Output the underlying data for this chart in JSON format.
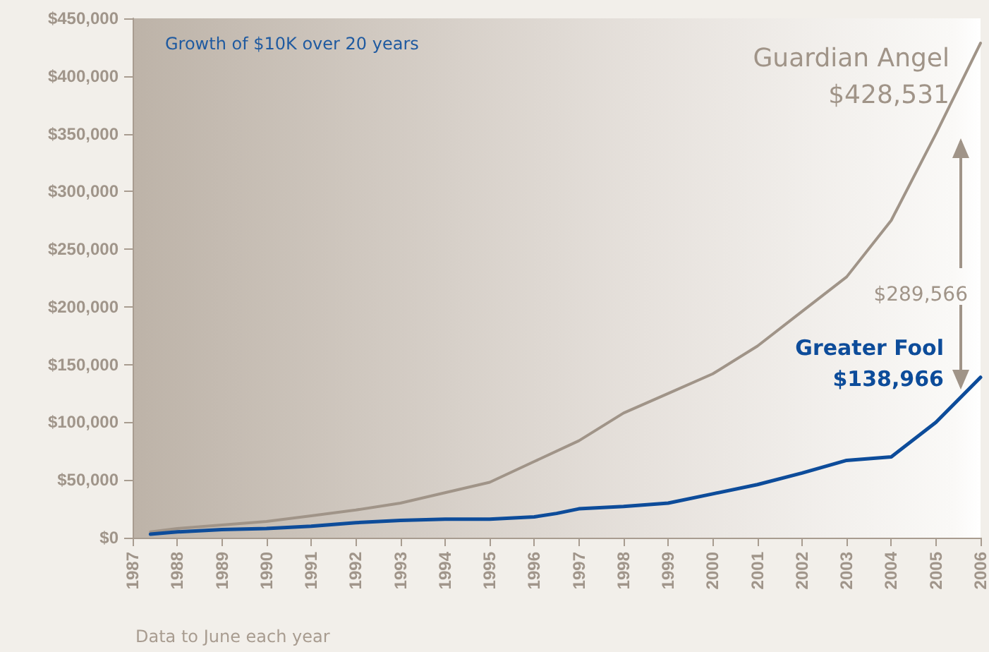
{
  "chart_data": {
    "type": "line",
    "title": "Growth of $10K over 20 years",
    "series": [
      {
        "name": "Guardian Angel",
        "color": "#a09488",
        "x": [
          1987.4,
          1988,
          1989,
          1990,
          1991,
          1992,
          1993,
          1994,
          1995,
          1996,
          1997,
          1998,
          1999,
          2000,
          2001,
          2002,
          2003,
          2004,
          2005,
          2006
        ],
        "values": [
          5000,
          8000,
          11000,
          14000,
          19000,
          24000,
          30000,
          39000,
          48000,
          66000,
          84000,
          108000,
          125000,
          142000,
          166000,
          196000,
          226000,
          275000,
          350000,
          428531
        ],
        "value_labels": [
          null,
          null,
          null,
          null,
          null,
          null,
          null,
          null,
          null,
          null,
          null,
          null,
          null,
          null,
          null,
          null,
          null,
          null,
          null,
          "$428,531"
        ]
      },
      {
        "name": "Greater Fool",
        "color": "#0d4c9a",
        "x": [
          1987.4,
          1988,
          1989,
          1990,
          1991,
          1992,
          1993,
          1994,
          1995,
          1996,
          1996.5,
          1997,
          1998,
          1999,
          2000,
          2001,
          2002,
          2003,
          2004,
          2005,
          2006
        ],
        "values": [
          3000,
          5000,
          7000,
          8000,
          10000,
          13000,
          15000,
          16000,
          16000,
          18000,
          21000,
          25000,
          27000,
          30000,
          38000,
          46000,
          56000,
          67000,
          70000,
          100000,
          138966
        ],
        "value_labels": [
          null,
          null,
          null,
          null,
          null,
          null,
          null,
          null,
          null,
          null,
          null,
          null,
          null,
          null,
          null,
          null,
          null,
          null,
          null,
          null,
          "$138,966"
        ]
      }
    ],
    "xlim": [
      1987,
      2006
    ],
    "xticks": [
      1987,
      1988,
      1989,
      1990,
      1991,
      1992,
      1993,
      1994,
      1995,
      1996,
      1997,
      1998,
      1999,
      2000,
      2001,
      2002,
      2003,
      2004,
      2005,
      2006
    ],
    "ylim": [
      0,
      450000
    ],
    "yticks": [
      {
        "value": 0,
        "label": "$0"
      },
      {
        "value": 50000,
        "label": "$50,000"
      },
      {
        "value": 100000,
        "label": "$100,000"
      },
      {
        "value": 150000,
        "label": "$150,000"
      },
      {
        "value": 200000,
        "label": "$200,000"
      },
      {
        "value": 250000,
        "label": "$250,000"
      },
      {
        "value": 300000,
        "label": "$300,000"
      },
      {
        "value": 350000,
        "label": "$350,000"
      },
      {
        "value": 400000,
        "label": "$400,000"
      },
      {
        "value": 450000,
        "label": "$450,000"
      }
    ],
    "annotations": [
      "$289,566",
      "Data to June each year"
    ],
    "grid": false,
    "legend": false,
    "marker": "none",
    "line_style": "solid"
  }
}
